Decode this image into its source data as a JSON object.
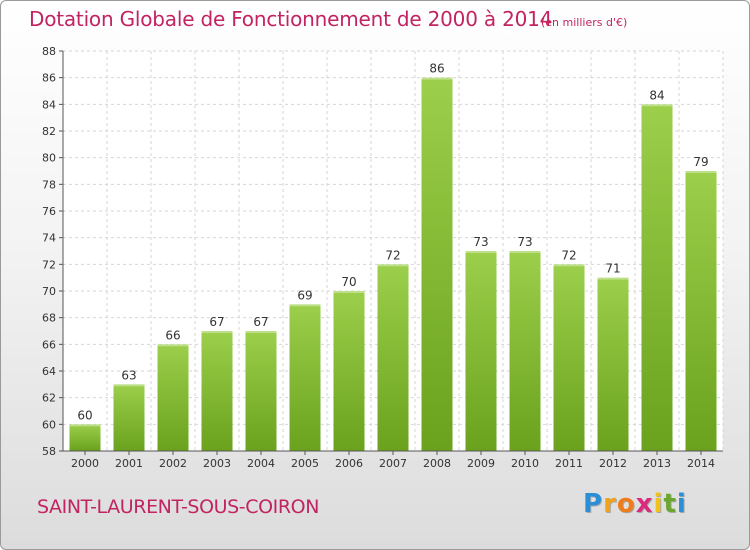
{
  "header": {
    "title": "Dotation Globale de Fonctionnement de 2000 à 2014",
    "subtitle": "(en milliers d'€)"
  },
  "footer": {
    "commune": "SAINT-LAURENT-SOUS-COIRON",
    "logo_letters": [
      "P",
      "r",
      "o",
      "x",
      "i",
      "t",
      "i"
    ],
    "logo_colors": [
      "#2a8fd6",
      "#f2a21b",
      "#ee7b1c",
      "#d92a7d",
      "#f2c21b",
      "#6aa72d",
      "#2a8fd6"
    ]
  },
  "chart_data": {
    "type": "bar",
    "title": "Dotation Globale de Fonctionnement de 2000 à 2014",
    "subtitle": "(en milliers d'€)",
    "categories": [
      "2000",
      "2001",
      "2002",
      "2003",
      "2004",
      "2005",
      "2006",
      "2007",
      "2008",
      "2009",
      "2010",
      "2011",
      "2012",
      "2013",
      "2014"
    ],
    "values": [
      60,
      63,
      66,
      67,
      67,
      69,
      70,
      72,
      86,
      73,
      73,
      72,
      71,
      84,
      79
    ],
    "ylim": [
      58,
      88
    ],
    "yticks": [
      58,
      60,
      62,
      64,
      66,
      68,
      70,
      72,
      74,
      76,
      78,
      80,
      82,
      84,
      86,
      88
    ],
    "grid": true,
    "bar_color_top": "#9ccf4b",
    "bar_color_bottom": "#6aa21d",
    "title_color": "#c22462"
  }
}
